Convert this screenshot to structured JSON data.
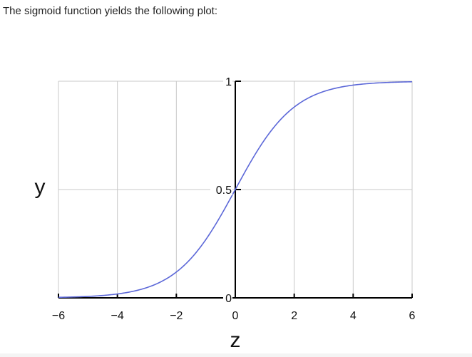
{
  "intro_text": "The sigmoid function yields the following plot:",
  "chart_data": {
    "type": "line",
    "title": "",
    "xlabel": "z",
    "ylabel": "y",
    "xlim": [
      -6,
      6
    ],
    "ylim": [
      0,
      1
    ],
    "x_ticks": [
      -6,
      -4,
      -2,
      0,
      2,
      4,
      6
    ],
    "x_tick_labels": [
      "−6",
      "−4",
      "−2",
      "0",
      "2",
      "4",
      "6"
    ],
    "y_ticks": [
      0,
      0.5,
      1
    ],
    "y_tick_labels": [
      "0",
      "0.5",
      "1"
    ],
    "grid": true,
    "series": [
      {
        "function": "sigmoid",
        "x": [
          -6,
          -5,
          -4,
          -3,
          -2,
          -1,
          0,
          1,
          2,
          3,
          4,
          5,
          6
        ],
        "y": [
          0.0025,
          0.0067,
          0.018,
          0.047,
          0.119,
          0.269,
          0.5,
          0.731,
          0.881,
          0.953,
          0.982,
          0.9933,
          0.9975
        ],
        "color": "#5b67d8"
      }
    ],
    "colors": {
      "grid": "#c8c8c8",
      "axis": "#000000",
      "curve": "#5b67d8"
    }
  }
}
